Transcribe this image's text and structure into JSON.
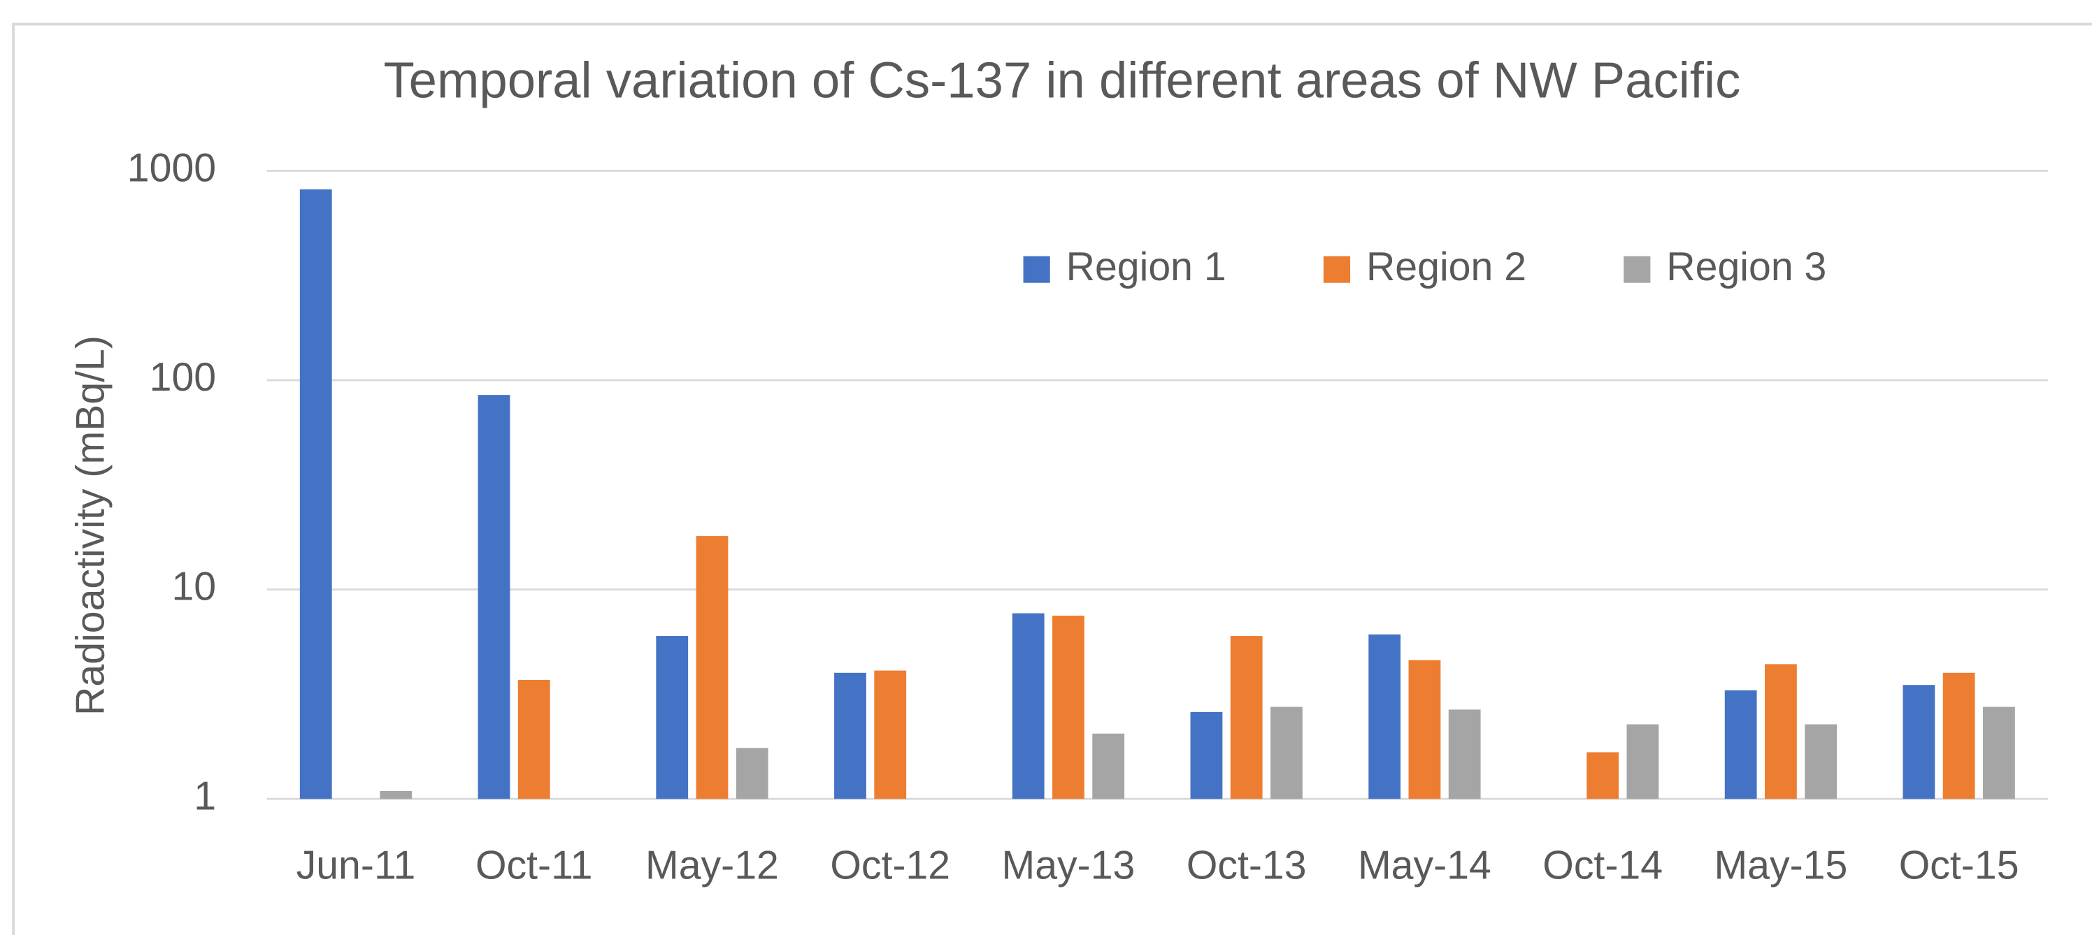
{
  "chart_data": {
    "type": "bar",
    "title": "Temporal variation of Cs-137 in different areas of NW Pacific",
    "y_label": "Radioactivity (mBq/L)",
    "categories": [
      "Jun-11",
      "Oct-11",
      "May-12",
      "Oct-12",
      "May-13",
      "Oct-13",
      "May-14",
      "Oct-14",
      "May-15",
      "Oct-15"
    ],
    "series": [
      {
        "name": "Region 1",
        "color": "#4472c4",
        "values": [
          815,
          85,
          6.0,
          4.0,
          7.7,
          2.6,
          6.1,
          null,
          3.3,
          3.5
        ]
      },
      {
        "name": "Region 2",
        "color": "#ed7d31",
        "values": [
          null,
          3.7,
          18,
          4.1,
          7.5,
          6.0,
          4.6,
          1.67,
          4.4,
          4.0
        ]
      },
      {
        "name": "Region 3",
        "color": "#a5a5a5",
        "values": [
          1.09,
          null,
          1.75,
          null,
          2.05,
          2.75,
          2.67,
          2.27,
          2.27,
          2.75
        ]
      }
    ],
    "ylim": [
      1,
      1000
    ],
    "yticks": [
      1,
      10,
      100,
      1000
    ],
    "yscale": "log",
    "grid": true,
    "legend": "top"
  }
}
